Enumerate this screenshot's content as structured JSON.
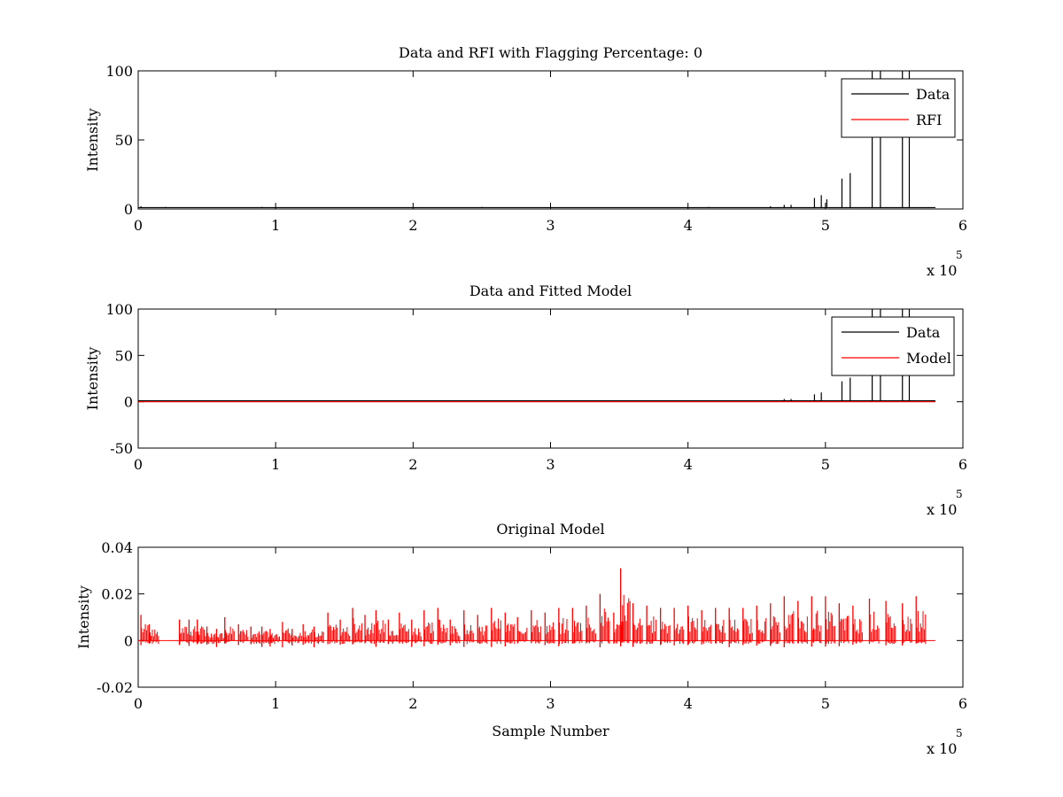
{
  "chart_data": [
    {
      "type": "line",
      "title": "Data and RFI with Flagging Percentage: 0",
      "xlabel": "",
      "ylabel": "Intensity",
      "xlim": [
        0,
        6
      ],
      "ylim": [
        0,
        100
      ],
      "x_multiplier": {
        "base": "x 10",
        "exponent": "5"
      },
      "xticks": [
        "0",
        "1",
        "2",
        "3",
        "4",
        "5",
        "6"
      ],
      "yticks": [
        "0",
        "50",
        "100"
      ],
      "legend": {
        "position": "top-right",
        "entries": [
          "Data",
          "RFI"
        ]
      },
      "series": [
        {
          "name": "Data",
          "color": "#000000",
          "baseline": 1,
          "x_end": 5.8,
          "spikes": [
            {
              "x": 0.02,
              "y": 2
            },
            {
              "x": 0.2,
              "y": 1.5
            },
            {
              "x": 0.9,
              "y": 1.5
            },
            {
              "x": 2.5,
              "y": 1.5
            },
            {
              "x": 4.15,
              "y": 1.5
            },
            {
              "x": 4.6,
              "y": 2
            },
            {
              "x": 4.7,
              "y": 3
            },
            {
              "x": 4.75,
              "y": 3
            },
            {
              "x": 4.92,
              "y": 8
            },
            {
              "x": 4.97,
              "y": 10
            },
            {
              "x": 5.01,
              "y": 7
            },
            {
              "x": 5.12,
              "y": 22
            },
            {
              "x": 5.18,
              "y": 26
            },
            {
              "x": 5.34,
              "y": 100
            },
            {
              "x": 5.4,
              "y": 100
            },
            {
              "x": 5.56,
              "y": 100
            },
            {
              "x": 5.61,
              "y": 100
            }
          ]
        },
        {
          "name": "RFI",
          "color": "#ff0000",
          "points": []
        }
      ]
    },
    {
      "type": "line",
      "title": "Data and Fitted Model",
      "xlabel": "",
      "ylabel": "Intensity",
      "xlim": [
        0,
        6
      ],
      "ylim": [
        -50,
        100
      ],
      "x_multiplier": {
        "base": "x 10",
        "exponent": "5"
      },
      "xticks": [
        "0",
        "1",
        "2",
        "3",
        "4",
        "5",
        "6"
      ],
      "yticks": [
        "-50",
        "0",
        "50",
        "100"
      ],
      "legend": {
        "position": "top-right",
        "entries": [
          "Data",
          "Model"
        ]
      },
      "series": [
        {
          "name": "Data",
          "color": "#000000",
          "baseline": 1,
          "x_end": 5.8,
          "spikes": [
            {
              "x": 4.7,
              "y": 3
            },
            {
              "x": 4.75,
              "y": 3
            },
            {
              "x": 4.92,
              "y": 8
            },
            {
              "x": 4.97,
              "y": 10
            },
            {
              "x": 5.12,
              "y": 22
            },
            {
              "x": 5.18,
              "y": 26
            },
            {
              "x": 5.34,
              "y": 100
            },
            {
              "x": 5.4,
              "y": 100
            },
            {
              "x": 5.56,
              "y": 100
            },
            {
              "x": 5.61,
              "y": 100
            }
          ]
        },
        {
          "name": "Model",
          "color": "#ff0000",
          "points": [
            [
              0,
              0
            ],
            [
              5.8,
              0
            ]
          ]
        }
      ]
    },
    {
      "type": "line",
      "title": "Original Model",
      "xlabel": "Sample Number",
      "ylabel": "Intensity",
      "xlim": [
        0,
        6
      ],
      "ylim": [
        -0.02,
        0.04
      ],
      "x_multiplier": {
        "base": "x 10",
        "exponent": "5"
      },
      "xticks": [
        "0",
        "1",
        "2",
        "3",
        "4",
        "5",
        "6"
      ],
      "yticks": [
        "-0.02",
        "0",
        "0.02",
        "0.04"
      ],
      "series": [
        {
          "color": "#ff0000",
          "x_end": 5.8,
          "bursts": [
            {
              "x": 0.02,
              "y": 0.011
            },
            {
              "x": 0.08,
              "y": 0.007
            },
            {
              "x": 0.3,
              "y": 0.009
            },
            {
              "x": 0.37,
              "y": 0.009
            },
            {
              "x": 0.43,
              "y": 0.009
            },
            {
              "x": 0.5,
              "y": 0.006
            },
            {
              "x": 0.57,
              "y": 0.005
            },
            {
              "x": 0.63,
              "y": 0.01
            },
            {
              "x": 0.73,
              "y": 0.007
            },
            {
              "x": 0.82,
              "y": 0.006
            },
            {
              "x": 0.9,
              "y": 0.006
            },
            {
              "x": 0.96,
              "y": 0.005
            },
            {
              "x": 1.05,
              "y": 0.008
            },
            {
              "x": 1.12,
              "y": 0.005
            },
            {
              "x": 1.2,
              "y": 0.007
            },
            {
              "x": 1.28,
              "y": 0.006
            },
            {
              "x": 1.38,
              "y": 0.012
            },
            {
              "x": 1.47,
              "y": 0.009
            },
            {
              "x": 1.56,
              "y": 0.014
            },
            {
              "x": 1.65,
              "y": 0.011
            },
            {
              "x": 1.73,
              "y": 0.013
            },
            {
              "x": 1.82,
              "y": 0.009
            },
            {
              "x": 1.9,
              "y": 0.012
            },
            {
              "x": 1.99,
              "y": 0.009
            },
            {
              "x": 2.08,
              "y": 0.013
            },
            {
              "x": 2.18,
              "y": 0.014
            },
            {
              "x": 2.27,
              "y": 0.009
            },
            {
              "x": 2.37,
              "y": 0.013
            },
            {
              "x": 2.47,
              "y": 0.011
            },
            {
              "x": 2.57,
              "y": 0.014
            },
            {
              "x": 2.67,
              "y": 0.012
            },
            {
              "x": 2.76,
              "y": 0.01
            },
            {
              "x": 2.86,
              "y": 0.013
            },
            {
              "x": 2.96,
              "y": 0.012
            },
            {
              "x": 3.06,
              "y": 0.014
            },
            {
              "x": 3.16,
              "y": 0.014
            },
            {
              "x": 3.26,
              "y": 0.015
            },
            {
              "x": 3.36,
              "y": 0.02
            },
            {
              "x": 3.46,
              "y": 0.012
            },
            {
              "x": 3.51,
              "y": 0.031
            },
            {
              "x": 3.6,
              "y": 0.016
            },
            {
              "x": 3.7,
              "y": 0.015
            },
            {
              "x": 3.8,
              "y": 0.014
            },
            {
              "x": 3.9,
              "y": 0.014
            },
            {
              "x": 4.0,
              "y": 0.015
            },
            {
              "x": 4.1,
              "y": 0.013
            },
            {
              "x": 4.2,
              "y": 0.014
            },
            {
              "x": 4.3,
              "y": 0.014
            },
            {
              "x": 4.4,
              "y": 0.014
            },
            {
              "x": 4.5,
              "y": 0.015
            },
            {
              "x": 4.6,
              "y": 0.016
            },
            {
              "x": 4.7,
              "y": 0.019
            },
            {
              "x": 4.8,
              "y": 0.017
            },
            {
              "x": 4.9,
              "y": 0.019
            },
            {
              "x": 5.0,
              "y": 0.019
            },
            {
              "x": 5.1,
              "y": 0.016
            },
            {
              "x": 5.2,
              "y": 0.015
            },
            {
              "x": 5.32,
              "y": 0.018
            },
            {
              "x": 5.44,
              "y": 0.017
            },
            {
              "x": 5.56,
              "y": 0.016
            },
            {
              "x": 5.66,
              "y": 0.019
            }
          ]
        }
      ]
    }
  ]
}
